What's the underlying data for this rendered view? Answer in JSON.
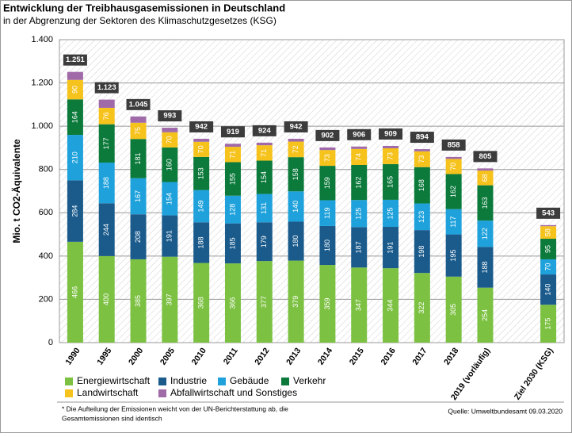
{
  "chart_data": {
    "type": "stacked_bar",
    "title": "Entwicklung der Treibhausgasemissionen in Deutschland",
    "subtitle": "in der Abgrenzung der Sektoren des Klimaschutzgesetzes (KSG)",
    "y_label": "Mio. t CO2-Äquivalente",
    "categories": [
      "1990",
      "1995",
      "2000",
      "2005",
      "2010",
      "2011",
      "2012",
      "2013",
      "2014",
      "2015",
      "2016",
      "2017",
      "2018",
      "2019 (vorläufig)",
      null,
      "Ziel 2030 (KSG)"
    ],
    "series": [
      {
        "name": "Energiewirtschaft",
        "color": "#7cc142",
        "values": [
          466,
          400,
          385,
          397,
          368,
          366,
          377,
          379,
          359,
          347,
          344,
          322,
          305,
          254,
          null,
          175
        ]
      },
      {
        "name": "Industrie",
        "color": "#1b5b8c",
        "values": [
          284,
          244,
          208,
          191,
          188,
          185,
          179,
          180,
          180,
          187,
          191,
          198,
          195,
          188,
          null,
          140
        ]
      },
      {
        "name": "Gebäude",
        "color": "#1fa2dc",
        "values": [
          210,
          188,
          167,
          154,
          149,
          128,
          131,
          140,
          119,
          125,
          125,
          123,
          117,
          122,
          null,
          70
        ]
      },
      {
        "name": "Verkehr",
        "color": "#0b7a3b",
        "values": [
          164,
          177,
          181,
          160,
          153,
          155,
          154,
          158,
          159,
          162,
          165,
          168,
          162,
          163,
          null,
          95
        ]
      },
      {
        "name": "Landwirtschaft",
        "color": "#f6c21c",
        "values": [
          90,
          76,
          75,
          70,
          70,
          71,
          71,
          72,
          73,
          74,
          73,
          73,
          70,
          68,
          null,
          58
        ]
      },
      {
        "name": "Abfallwirtschaft und Sonstiges",
        "color": "#a06aa9",
        "values": [
          37,
          38,
          29,
          21,
          14,
          14,
          12,
          13,
          12,
          11,
          11,
          10,
          9,
          10,
          null,
          5
        ]
      }
    ],
    "totals": {
      "values": [
        1251,
        1123,
        1045,
        993,
        942,
        919,
        924,
        942,
        902,
        906,
        909,
        894,
        858,
        805,
        null,
        543
      ],
      "value_labels": [
        "1.251",
        "1.123",
        "1.045",
        "993",
        "942",
        "919",
        "924",
        "942",
        "902",
        "906",
        "909",
        "894",
        "858",
        "805",
        null,
        "543"
      ]
    },
    "ylim": [
      0,
      1400
    ],
    "yticks": [
      0,
      200,
      400,
      600,
      800,
      {
        "value": 1000,
        "label": "1.000"
      },
      {
        "value": 1200,
        "label": "1.200"
      },
      {
        "value": 1400,
        "label": "1.400"
      }
    ],
    "grid": true,
    "legend": "bottom",
    "footnote": [
      "* Die Aufteilung der Emissionen weicht von der UN-Berichterstattung ab, die",
      "Gesamtemissionen sind identisch"
    ],
    "source": "Quelle: Umweltbundesamt  09.03.2020"
  }
}
